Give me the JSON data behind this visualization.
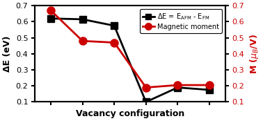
{
  "x": [
    1,
    2,
    3,
    4,
    5,
    6
  ],
  "delta_E": [
    0.62,
    0.615,
    0.575,
    0.1,
    0.19,
    0.175
  ],
  "mag_moment": [
    0.67,
    0.48,
    0.47,
    0.19,
    0.205,
    0.205
  ],
  "delta_E_color": "#000000",
  "mag_color": "#cc0000",
  "xlabel": "Vacancy configuration",
  "ylabel_left": "ΔE (eV)",
  "ylim": [
    0.1,
    0.7
  ],
  "yticks": [
    0.1,
    0.2,
    0.3,
    0.4,
    0.5,
    0.6,
    0.7
  ],
  "axis_fontsize": 9,
  "tick_fontsize": 8,
  "legend_fontsize": 7,
  "linewidth": 2.0,
  "marker_size_square": 7,
  "marker_size_circle": 8,
  "bg_color": "#ffffff"
}
